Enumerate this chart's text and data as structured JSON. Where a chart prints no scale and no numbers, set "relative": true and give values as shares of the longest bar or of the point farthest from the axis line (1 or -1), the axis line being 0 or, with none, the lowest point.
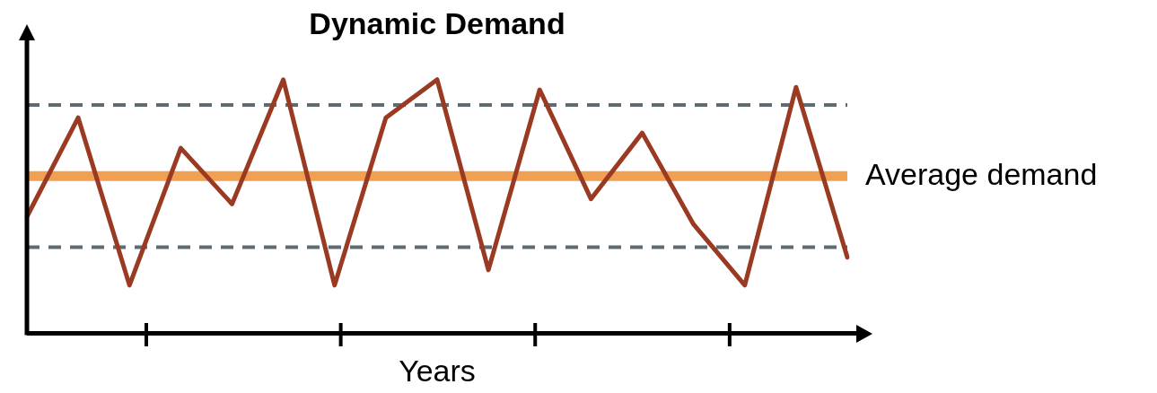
{
  "chart_data": {
    "type": "line",
    "title": "Dynamic Demand",
    "xlabel": "Years",
    "relative": true,
    "categories": [
      null,
      null,
      null,
      null,
      null,
      null,
      null,
      null,
      null,
      null,
      null,
      null,
      null,
      null,
      null,
      null,
      null
    ],
    "series": [
      {
        "color": "#9b3a22",
        "values": [
          0.46,
          0.85,
          0.19,
          0.73,
          0.51,
          1,
          0.19,
          0.85,
          1,
          0.25,
          0.96,
          0.53,
          0.79,
          0.43,
          0.19,
          0.97,
          0.3
        ]
      }
    ],
    "ref_lines": [
      {
        "axis": "y",
        "value": 0.9,
        "color": "#5f6b73",
        "line_style": "dashed"
      },
      {
        "axis": "y",
        "value": 0.34,
        "color": "#5f6b73",
        "line_style": "dashed"
      },
      {
        "axis": "y",
        "value": 0.62,
        "label": "Average demand",
        "color": "#f0a050",
        "line_style": "solid"
      }
    ],
    "legend": false,
    "marker": "none",
    "line_style": "solid"
  }
}
